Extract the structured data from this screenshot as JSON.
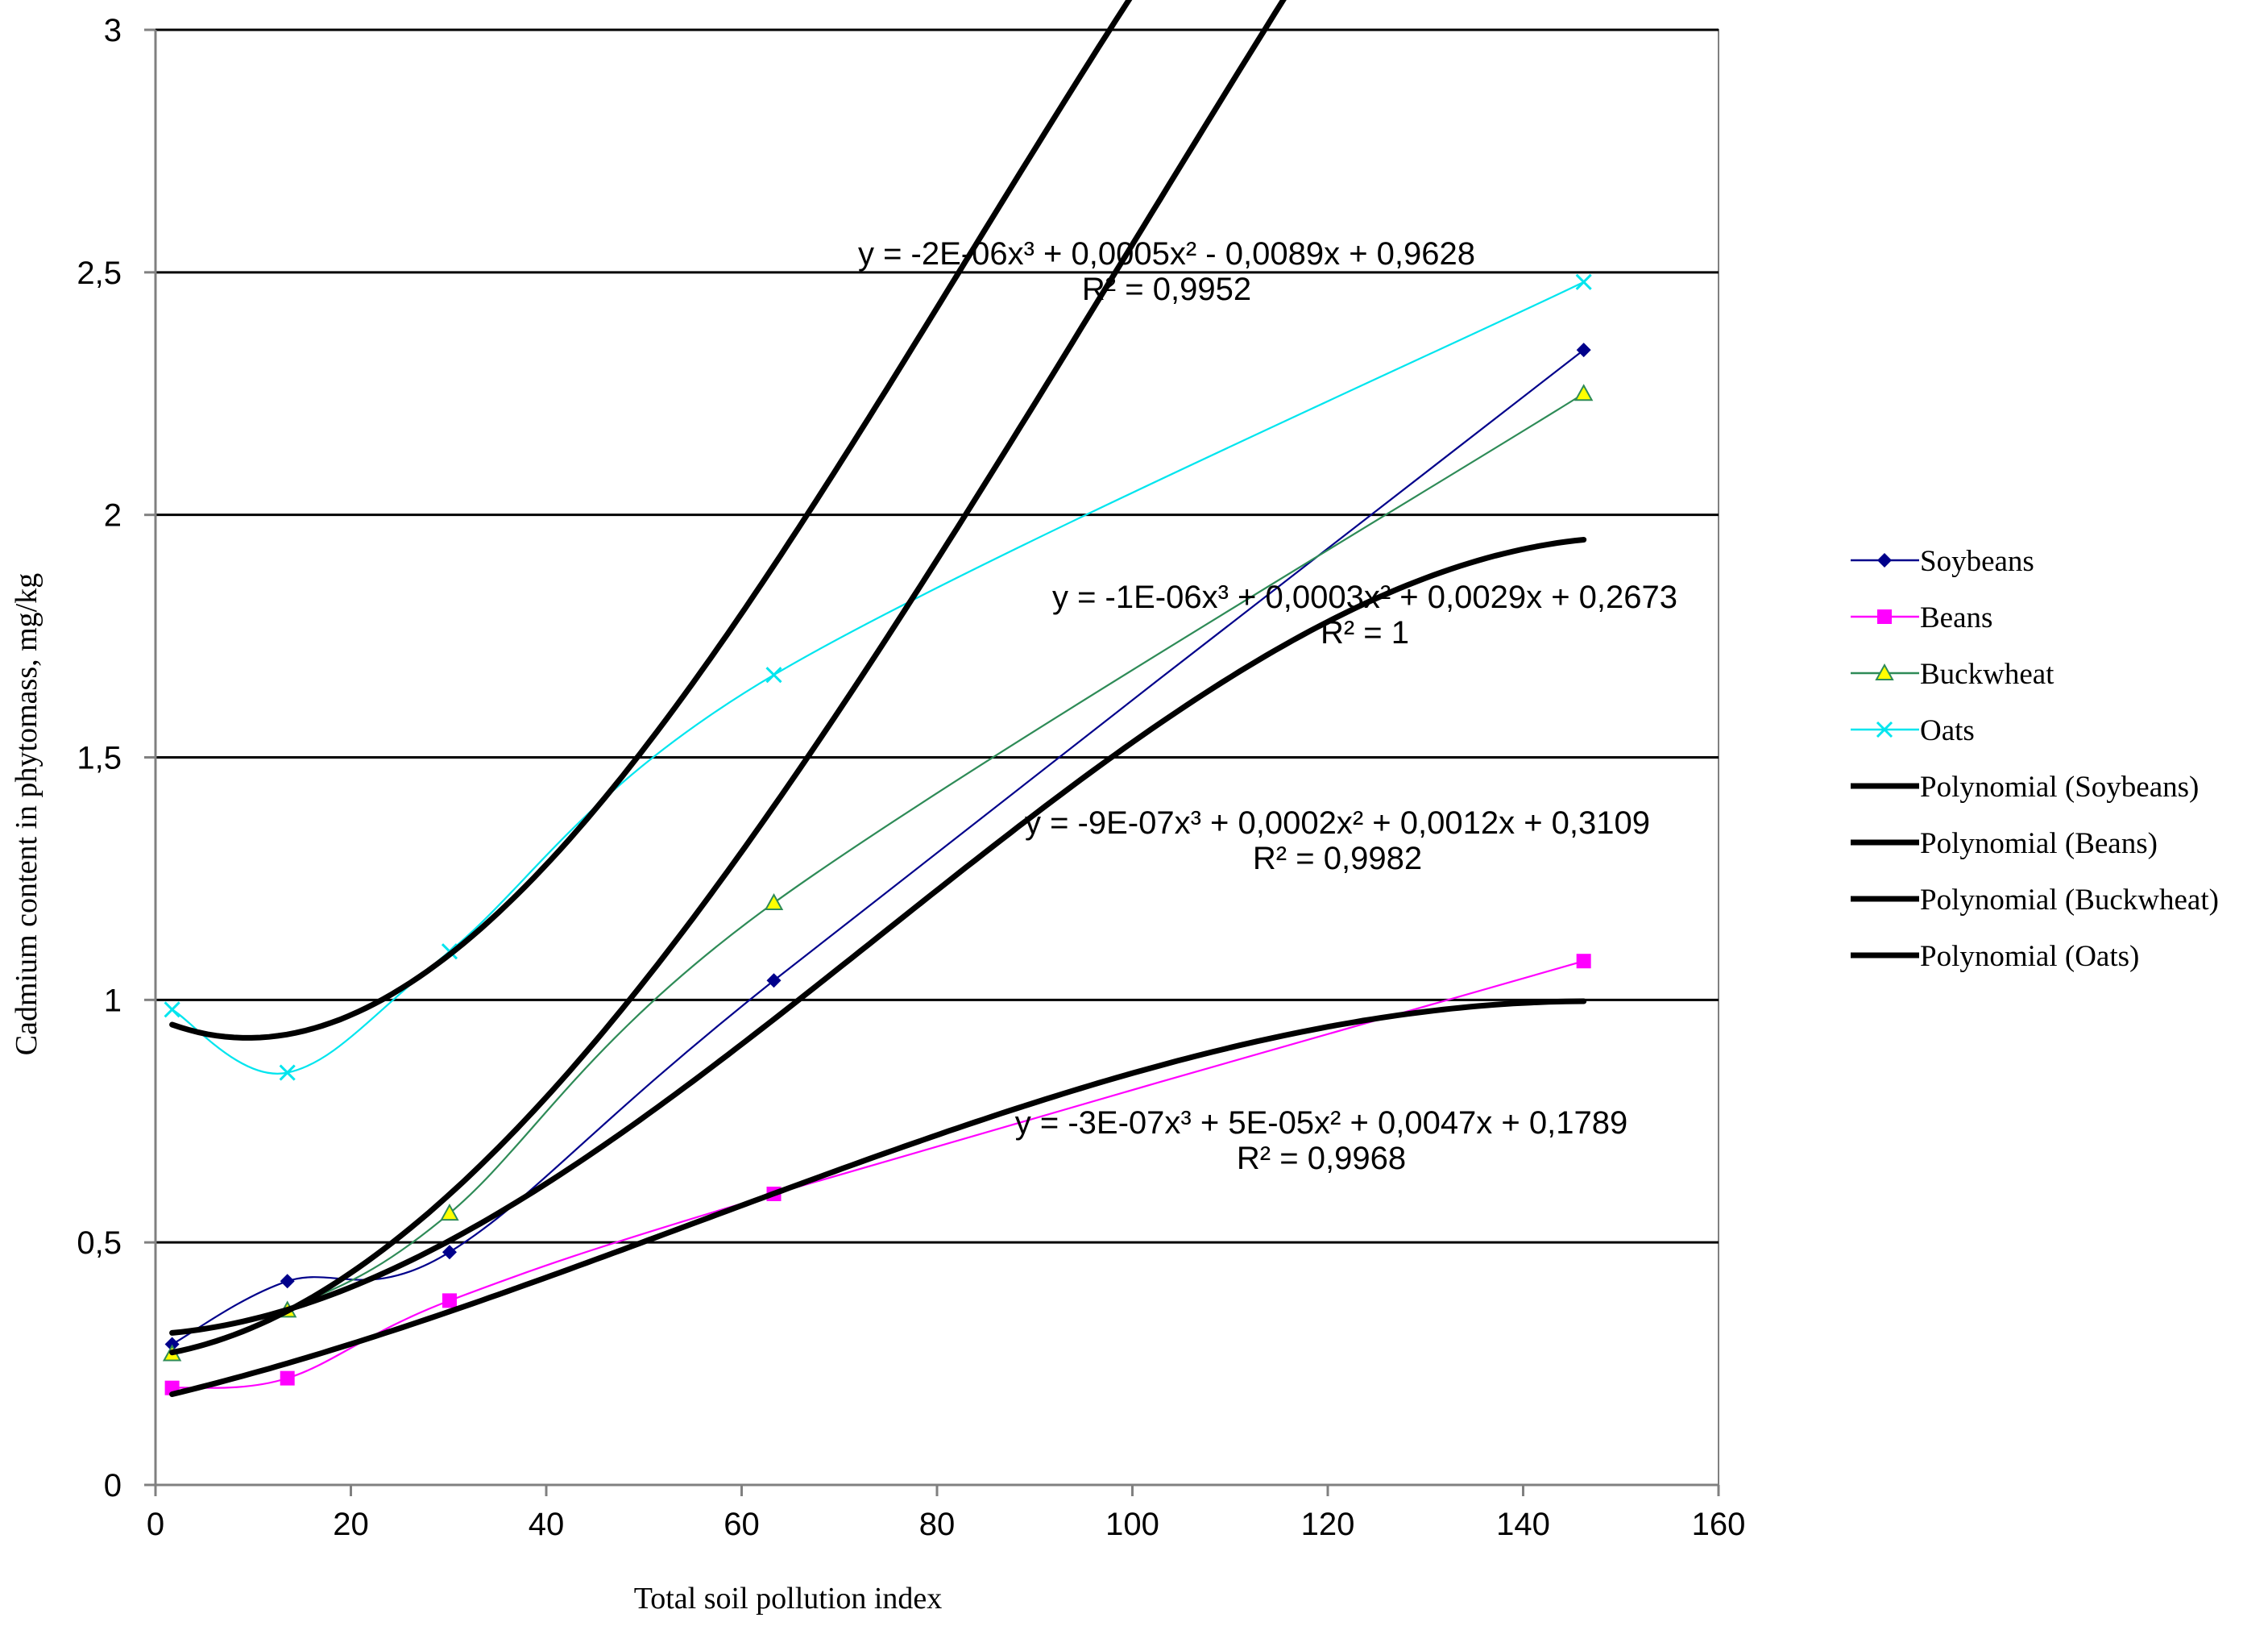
{
  "chart_data": {
    "type": "scatter",
    "title": "",
    "xlabel": "Total soil pollution index",
    "ylabel": "Cadmium content in phytomass, mg/kg",
    "xlim": [
      0,
      160
    ],
    "ylim": [
      0,
      3
    ],
    "xticks": [
      0,
      20,
      40,
      60,
      80,
      100,
      120,
      140,
      160
    ],
    "yticks": [
      0,
      0.5,
      1,
      1.5,
      2,
      2.5,
      3
    ],
    "xtick_labels": [
      "0",
      "20",
      "40",
      "60",
      "80",
      "100",
      "120",
      "140",
      "160"
    ],
    "ytick_labels": [
      "0",
      "0,5",
      "1",
      "1,5",
      "2",
      "2,5",
      "3"
    ],
    "grid": "horizontal",
    "legend_position": "right",
    "series": [
      {
        "name": "Soybeans",
        "color": "#00008B",
        "marker": "diamond",
        "x": [
          1.7,
          13.5,
          30.1,
          63.3,
          146.2
        ],
        "values": [
          0.29,
          0.42,
          0.48,
          1.04,
          2.34
        ]
      },
      {
        "name": "Beans",
        "color": "#FF00FF",
        "marker": "square",
        "x": [
          1.7,
          13.5,
          30.1,
          63.3,
          146.2
        ],
        "values": [
          0.2,
          0.22,
          0.38,
          0.6,
          1.08
        ]
      },
      {
        "name": "Buckwheat",
        "color": "#2E8B57",
        "marker": "triangle",
        "x": [
          1.7,
          13.5,
          30.1,
          63.3,
          146.2
        ],
        "values": [
          0.27,
          0.36,
          0.56,
          1.2,
          2.25
        ]
      },
      {
        "name": "Oats",
        "color": "#00E5EE",
        "marker": "x",
        "x": [
          1.7,
          13.5,
          30.1,
          63.3,
          146.2
        ],
        "values": [
          0.98,
          0.85,
          1.1,
          1.67,
          2.48
        ]
      }
    ],
    "trendlines": [
      {
        "name": "Polynomial (Soybeans)",
        "coefficients": [
          -9e-07,
          0.0002,
          0.0012,
          0.3109
        ],
        "equation": "y = -9E-07x³ + 0,0002x² + 0,0012x + 0,3109",
        "r2": "R² = 0,9982"
      },
      {
        "name": "Polynomial (Beans)",
        "coefficients": [
          -3e-07,
          5e-05,
          0.0047,
          0.1789
        ],
        "equation": "y = -3E-07x³ + 5E-05x² + 0,0047x + 0,1789",
        "r2": "R² = 0,9968"
      },
      {
        "name": "Polynomial (Buckwheat)",
        "coefficients": [
          -1e-06,
          0.0003,
          0.0029,
          0.2673
        ],
        "equation": "y = -1E-06x³ + 0,0003x² + 0,0029x + 0,2673",
        "r2": "R² = 1"
      },
      {
        "name": "Polynomial (Oats)",
        "coefficients": [
          -2e-06,
          0.0005,
          -0.0089,
          0.9628
        ],
        "equation": "y = -2E-06x³ + 0,0005x² - 0,0089x + 0,9628",
        "r2": "R² = 0,9952"
      }
    ]
  }
}
